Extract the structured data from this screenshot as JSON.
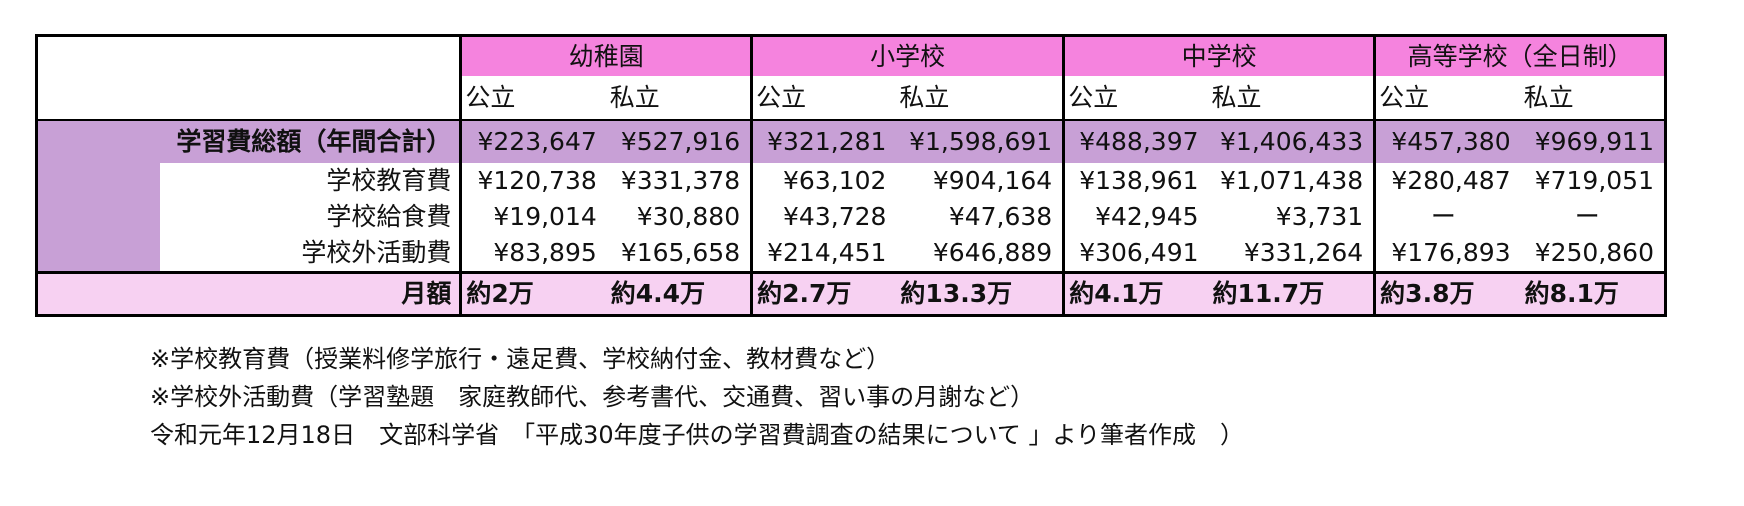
{
  "table": {
    "groups": [
      "幼稚園",
      "小学校",
      "中学校",
      "高等学校（全日制）"
    ],
    "subheaders": [
      "公立",
      "私立"
    ],
    "total_label": "学習費総額（年間合計）",
    "total_values": [
      "¥223,647",
      "¥527,916",
      "¥321,281",
      "¥1,598,691",
      "¥488,397",
      "¥1,406,433",
      "¥457,380",
      "¥969,911"
    ],
    "rows": [
      {
        "label": "学校教育費",
        "values": [
          "¥120,738",
          "¥331,378",
          "¥63,102",
          "¥904,164",
          "¥138,961",
          "¥1,071,438",
          "¥280,487",
          "¥719,051"
        ]
      },
      {
        "label": "学校給食費",
        "values": [
          "¥19,014",
          "¥30,880",
          "¥43,728",
          "¥47,638",
          "¥42,945",
          "¥3,731",
          "ー",
          "ー"
        ]
      },
      {
        "label": "学校外活動費",
        "values": [
          "¥83,895",
          "¥165,658",
          "¥214,451",
          "¥646,889",
          "¥306,491",
          "¥331,264",
          "¥176,893",
          "¥250,860"
        ]
      }
    ],
    "monthly_label": "月額",
    "monthly_values": [
      "約2万",
      "約4.4万",
      "約2.7万",
      "約13.3万",
      "約4.1万",
      "約11.7万",
      "約3.8万",
      "約8.1万"
    ]
  },
  "notes": [
    "※学校教育費（授業料修学旅行・遠足費、学校納付金、教材費など）",
    "※学校外活動費（学習塾題　家庭教師代、参考書代、交通費、習い事の月謝など）",
    "令和元年12月18日　文部科学省　「平成30年度子供の学習費調査の結果について 」より筆者作成　）"
  ],
  "colors": {
    "header_pink": "#f583de",
    "total_purple": "#c8a0d6",
    "monthly_pink": "#f7d1f2"
  }
}
